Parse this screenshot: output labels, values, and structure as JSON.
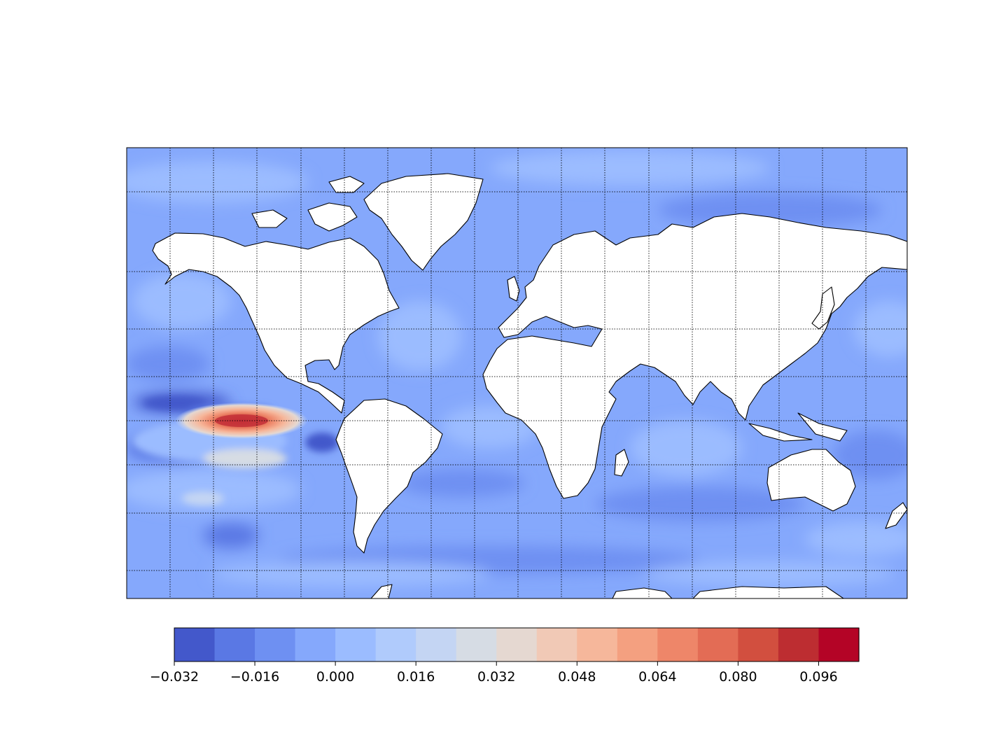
{
  "figure": {
    "background": "#ffffff",
    "ocean_palette": {
      "deep_blue": "#3b4cc0",
      "mid_blue": "#6b8ff0",
      "light_blue": "#9bb7fa",
      "pale_blue": "#c3d5f4",
      "neutral": "#dddddd",
      "deep_red": "#b40426"
    },
    "land_color": "#ffffff",
    "coastline_color": "#000000",
    "graticule_style": "dotted"
  },
  "map": {
    "projection": "mercator",
    "lon_range": [
      -180,
      180
    ],
    "lat_range": [
      -80,
      80
    ],
    "meridians_every_deg": 20,
    "parallels": [
      -75,
      -60,
      -30,
      -15,
      0,
      15,
      30,
      45,
      60,
      75
    ],
    "features": [
      {
        "name": "equatorial-pacific-warm-anomaly",
        "peak_value": 0.1,
        "lon": -140,
        "lat": 0
      },
      {
        "name": "eastern-pacific-cold-anomaly",
        "peak_value": -0.03,
        "lon": -100,
        "lat": -8
      }
    ]
  },
  "colorbar": {
    "levels": [
      -0.032,
      -0.026,
      -0.02,
      -0.014,
      -0.008,
      -0.002,
      0.004,
      0.01,
      0.016,
      0.022,
      0.028,
      0.034,
      0.04,
      0.046,
      0.052,
      0.058,
      0.064,
      0.07,
      0.076,
      0.082,
      0.088,
      0.094,
      0.1,
      0.104
    ],
    "colors": [
      "#4358cb",
      "#5a78e4",
      "#6e90f2",
      "#85a8fc",
      "#9bbcff",
      "#b0cbfc",
      "#c4d5f3",
      "#d6dce4",
      "#e5d8d1",
      "#f1c9b6",
      "#f6b79b",
      "#f4a080",
      "#ee8669",
      "#e36c55",
      "#d24f3f",
      "#bd2d31",
      "#b40426"
    ],
    "tick_labels": [
      "−0.032",
      "−0.016",
      "0.000",
      "0.016",
      "0.032",
      "0.048",
      "0.064",
      "0.080",
      "0.096"
    ]
  }
}
